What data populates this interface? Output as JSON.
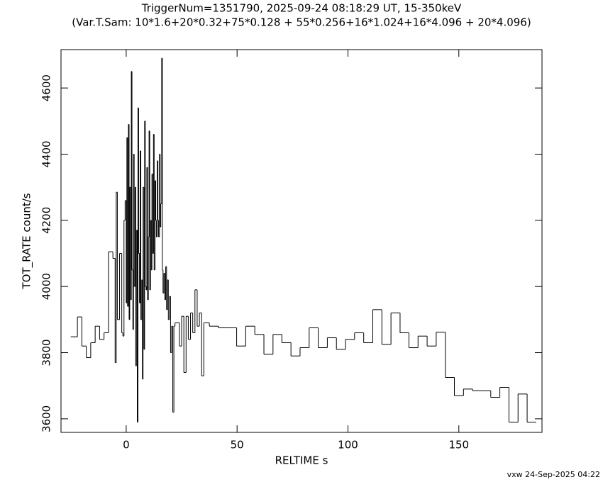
{
  "chart_data": {
    "type": "step",
    "title": "TriggerNum=1351790, 2025-09-24 08:18:29 UT, 15-350keV",
    "subtitle": "(Var.T.Sam: 10*1.6+20*0.32+75*0.128  +  55*0.256+16*1.024+16*4.096  +  20*4.096)",
    "x_label": "RELTIME   s",
    "y_label": "TOT_RATE   count/s",
    "footer": "vxw 24-Sep-2025 04:22",
    "color": "#000000",
    "xlim": [
      -29.4,
      187.5
    ],
    "ylim": [
      3559,
      4716
    ],
    "xticks": [
      0,
      50,
      100,
      150
    ],
    "yticks": [
      3600,
      3800,
      4000,
      4200,
      4400,
      4600
    ],
    "x": [
      -25,
      -22,
      -20,
      -18,
      -16,
      -14,
      -12,
      -10,
      -8,
      -6,
      -5,
      -4.5,
      -4,
      -3,
      -2,
      -1.5,
      -1,
      -0.5,
      0,
      0.3,
      0.6,
      1,
      1.3,
      1.6,
      2,
      2.3,
      2.6,
      3,
      3.3,
      3.6,
      4,
      4.3,
      4.6,
      5,
      5.3,
      5.6,
      6,
      6.3,
      6.6,
      7,
      7.3,
      7.6,
      8,
      8.3,
      8.6,
      9,
      9.3,
      9.6,
      10,
      10.3,
      10.6,
      11,
      11.3,
      11.6,
      12,
      12.3,
      12.6,
      13,
      13.3,
      13.6,
      14,
      14.3,
      14.6,
      15,
      15.3,
      15.6,
      16,
      16.3,
      16.6,
      17,
      17.4,
      17.8,
      18.2,
      18.6,
      19,
      19.5,
      20,
      20.5,
      21,
      21.5,
      22,
      24,
      25,
      26,
      27,
      28,
      29,
      30,
      31,
      32,
      33,
      34,
      35,
      37.5,
      41.6,
      45.7,
      49.8,
      53.9,
      58,
      62.1,
      66.2,
      70.2,
      74.3,
      78.4,
      82.5,
      86.6,
      90.7,
      94.8,
      98.9,
      103,
      107.1,
      111.2,
      115.3,
      119.4,
      123.5,
      127.5,
      131.6,
      135.7,
      139.8,
      143.9,
      148,
      152.1,
      156.2,
      160.3,
      164.4,
      168.5,
      172.6,
      176.7,
      180.8
    ],
    "values": [
      3848,
      3908,
      3820,
      3785,
      3830,
      3880,
      3840,
      3860,
      4105,
      4085,
      3770,
      4285,
      3900,
      4100,
      3860,
      3850,
      4200,
      4260,
      3950,
      4450,
      3940,
      4490,
      3900,
      4300,
      3960,
      4650,
      4050,
      3870,
      4400,
      4000,
      4300,
      3760,
      4170,
      3590,
      4540,
      4100,
      3950,
      4410,
      3900,
      4020,
      3720,
      4300,
      3810,
      4500,
      4000,
      3990,
      4360,
      3960,
      4150,
      4470,
      3990,
      4200,
      4050,
      4340,
      4100,
      4460,
      4050,
      4320,
      4200,
      4150,
      4380,
      4200,
      4150,
      4400,
      4180,
      4250,
      4690,
      4050,
      3980,
      4040,
      3960,
      4060,
      3930,
      4020,
      3900,
      3970,
      3800,
      3880,
      3620,
      3880,
      3890,
      3820,
      3910,
      3740,
      3910,
      3840,
      3920,
      3860,
      3990,
      3880,
      3920,
      3730,
      3890,
      3880,
      3875,
      3875,
      3820,
      3880,
      3855,
      3795,
      3855,
      3830,
      3790,
      3815,
      3875,
      3815,
      3845,
      3810,
      3840,
      3860,
      3830,
      3930,
      3825,
      3920,
      3860,
      3815,
      3850,
      3820,
      3862,
      3725,
      3670,
      3690,
      3685,
      3685,
      3665,
      3695,
      3590,
      3675,
      3590
    ]
  }
}
